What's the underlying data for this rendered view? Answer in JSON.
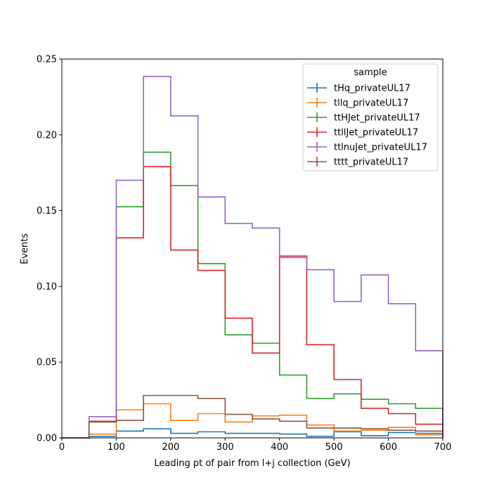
{
  "chart_data": {
    "type": "line",
    "drawstyle": "step",
    "xlabel": "Leading pt of pair from l+j collection (GeV)",
    "ylabel": "Events",
    "xlim": [
      0,
      700
    ],
    "ylim": [
      0,
      0.25
    ],
    "xticks": [
      0,
      100,
      200,
      300,
      400,
      500,
      600,
      700
    ],
    "yticks": [
      0.0,
      0.05,
      0.1,
      0.15,
      0.2,
      0.25
    ],
    "ytick_labels": [
      "0.00",
      "0.05",
      "0.10",
      "0.15",
      "0.20",
      "0.25"
    ],
    "grid": false,
    "legend": {
      "title": "sample",
      "placement": "top-right"
    },
    "bin_edges": [
      0,
      50,
      100,
      150,
      200,
      250,
      300,
      350,
      400,
      450,
      500,
      550,
      600,
      650,
      700
    ],
    "series": [
      {
        "name": "tHq_privateUL17",
        "color": "#1f77b4",
        "values": [
          0,
          0.001,
          0.0045,
          0.006,
          0.003,
          0.004,
          0.003,
          0.003,
          0.0025,
          0.001,
          0.004,
          0.0015,
          0.0035,
          0.003
        ]
      },
      {
        "name": "tllq_privateUL17",
        "color": "#ff7f0e",
        "values": [
          0,
          0.0025,
          0.0185,
          0.0225,
          0.0115,
          0.016,
          0.0105,
          0.0145,
          0.015,
          0.0085,
          0.0045,
          0.005,
          0.007,
          0.002
        ]
      },
      {
        "name": "ttHJet_privateUL17",
        "color": "#2ca02c",
        "values": [
          0,
          0.0105,
          0.1525,
          0.1885,
          0.1665,
          0.115,
          0.068,
          0.0625,
          0.0415,
          0.026,
          0.029,
          0.0255,
          0.0225,
          0.0195
        ]
      },
      {
        "name": "ttllJet_privateUL17",
        "color": "#d62728",
        "values": [
          0,
          0.011,
          0.132,
          0.179,
          0.124,
          0.1105,
          0.079,
          0.056,
          0.12,
          0.0615,
          0.0385,
          0.0195,
          0.016,
          0.009
        ]
      },
      {
        "name": "ttlnuJet_privateUL17",
        "color": "#9467bd",
        "values": [
          0,
          0.014,
          0.17,
          0.2385,
          0.2125,
          0.159,
          0.1415,
          0.1385,
          0.119,
          0.111,
          0.09,
          0.1075,
          0.0885,
          0.0575
        ]
      },
      {
        "name": "tttt_privateUL17",
        "color": "#8c564b",
        "values": [
          0,
          0.0105,
          0.0115,
          0.028,
          0.028,
          0.026,
          0.0155,
          0.0125,
          0.011,
          0.0065,
          0.0065,
          0.006,
          0.005,
          0.0045
        ]
      }
    ]
  }
}
